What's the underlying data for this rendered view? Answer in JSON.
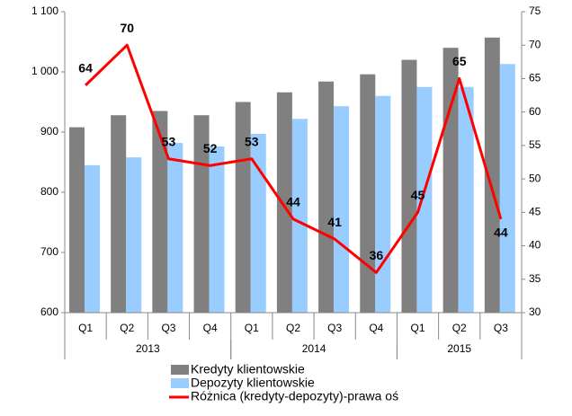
{
  "chart_data": {
    "type": "bar-line",
    "categories": [
      "Q1",
      "Q2",
      "Q3",
      "Q4",
      "Q1",
      "Q2",
      "Q3",
      "Q4",
      "Q1",
      "Q2",
      "Q3"
    ],
    "groups": [
      {
        "label": "2013",
        "count": 4
      },
      {
        "label": "2014",
        "count": 4
      },
      {
        "label": "2015",
        "count": 3
      }
    ],
    "series": [
      {
        "name": "Kredyty klientowskie",
        "color": "#808080",
        "type": "bar",
        "values": [
          908,
          928,
          935,
          928,
          950,
          966,
          984,
          996,
          1020,
          1040,
          1057
        ]
      },
      {
        "name": "Depozyty klientowskie",
        "color": "#99ccff",
        "type": "bar",
        "values": [
          845,
          858,
          882,
          876,
          897,
          922,
          943,
          960,
          975,
          975,
          1013
        ]
      },
      {
        "name": "Różnica (kredyty-depozyty)-prawa oś",
        "color": "#ff0000",
        "type": "line",
        "axis": "y2",
        "values": [
          64,
          70,
          53,
          52,
          53,
          44,
          41,
          36,
          45,
          65,
          44
        ]
      }
    ],
    "ylim": [
      600,
      1100
    ],
    "yticks": [
      600,
      700,
      800,
      900,
      {
        "value": 1000,
        "label": "1 000"
      },
      {
        "value": 1100,
        "label": "1 100"
      }
    ],
    "y2lim": [
      30,
      75
    ],
    "y2ticks": [
      30,
      35,
      40,
      45,
      50,
      55,
      60,
      65,
      70,
      75
    ],
    "grid": false
  }
}
